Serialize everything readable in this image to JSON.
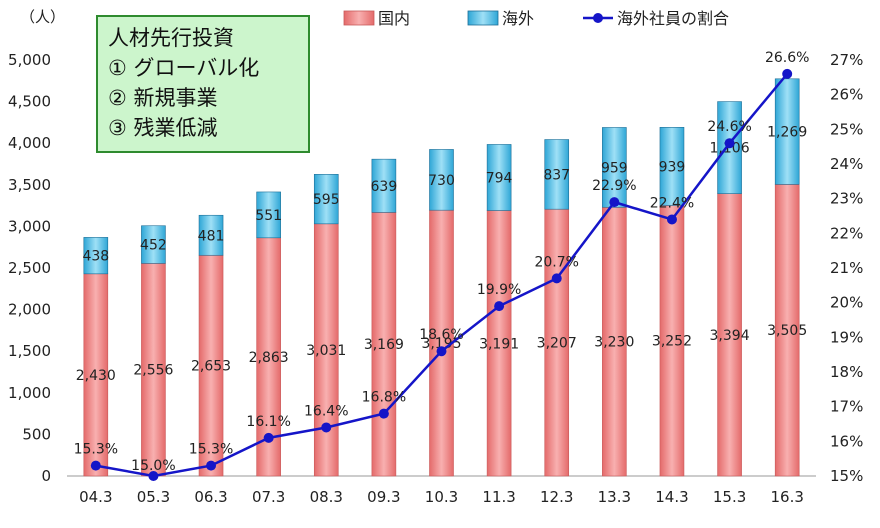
{
  "chart_data": {
    "type": "bar",
    "unit_label": "（人）",
    "categories": [
      "04.3",
      "05.3",
      "06.3",
      "07.3",
      "08.3",
      "09.3",
      "10.3",
      "11.3",
      "12.3",
      "13.3",
      "14.3",
      "15.3",
      "16.3"
    ],
    "series": [
      {
        "name": "国内",
        "type": "bar",
        "stack": "total",
        "color": "#f08080",
        "values": [
          2430,
          2556,
          2653,
          2863,
          3031,
          3169,
          3195,
          3191,
          3207,
          3230,
          3252,
          3394,
          3505
        ]
      },
      {
        "name": "海外",
        "type": "bar",
        "stack": "total",
        "color": "#3fb8e0",
        "values": [
          438,
          452,
          481,
          551,
          595,
          639,
          730,
          794,
          837,
          959,
          939,
          1106,
          1269
        ]
      },
      {
        "name": "海外社員の割合",
        "type": "line",
        "axis": "right",
        "color": "#1515c8",
        "values": [
          15.3,
          15.0,
          15.3,
          16.1,
          16.4,
          16.8,
          18.6,
          19.9,
          20.7,
          22.9,
          22.4,
          24.6,
          26.6
        ]
      }
    ],
    "ylim_left": [
      0,
      5000
    ],
    "yticks_left": [
      "0",
      "500",
      "1,000",
      "1,500",
      "2,000",
      "2,500",
      "3,000",
      "3,500",
      "4,000",
      "4,500",
      "5,000"
    ],
    "ylim_right": [
      15,
      27
    ],
    "yticks_right": [
      "15%",
      "16%",
      "17%",
      "18%",
      "19%",
      "20%",
      "21%",
      "22%",
      "23%",
      "24%",
      "25%",
      "26%",
      "27%"
    ],
    "label_domestic": [
      "2,430",
      "2,556",
      "2,653",
      "2,863",
      "3,031",
      "3,169",
      "3,195",
      "3,191",
      "3,207",
      "3,230",
      "3,252",
      "3,394",
      "3,505"
    ],
    "label_overseas": [
      "438",
      "452",
      "481",
      "551",
      "595",
      "639",
      "730",
      "794",
      "837",
      "959",
      "939",
      "1,106",
      "1,269"
    ],
    "label_ratio": [
      "15.3%",
      "15.0%",
      "15.3%",
      "16.1%",
      "16.4%",
      "16.8%",
      "18.6%",
      "19.9%",
      "20.7%",
      "22.9%",
      "22.4%",
      "24.6%",
      "26.6%"
    ],
    "legend_placement": "top",
    "grid": false
  },
  "note": {
    "title": "人材先行投資",
    "items": [
      "① グローバル化",
      "② 新規事業",
      "③ 残業低減"
    ]
  }
}
